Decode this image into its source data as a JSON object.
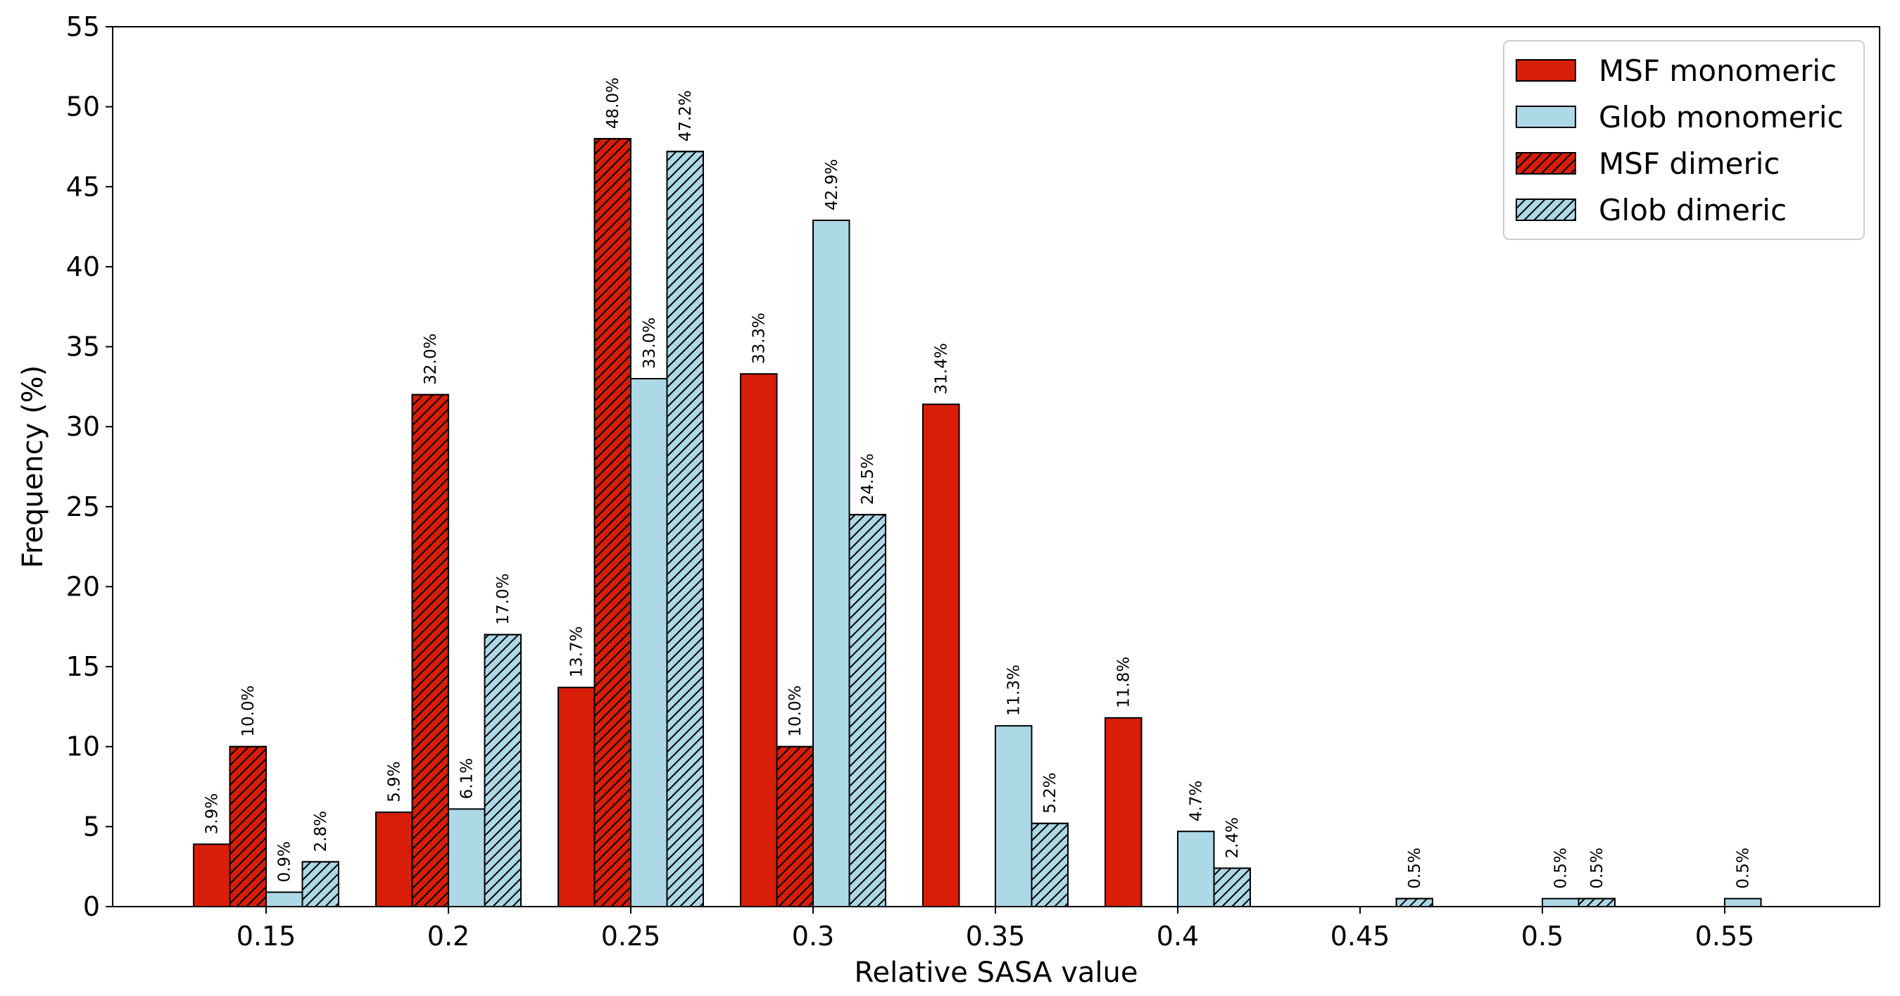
{
  "chart_data": {
    "type": "bar",
    "xlabel": "Relative SASA value",
    "ylabel": "Frequency (%)",
    "ylim": [
      0,
      55
    ],
    "yticks": [
      0,
      5,
      10,
      15,
      20,
      25,
      30,
      35,
      40,
      45,
      50,
      55
    ],
    "categories": [
      "0.15",
      "0.2",
      "0.25",
      "0.3",
      "0.35",
      "0.4",
      "0.45",
      "0.5",
      "0.55"
    ],
    "grid": false,
    "legend_position": "top-right",
    "series": [
      {
        "name": "MSF monomeric",
        "color": "#d81e08",
        "hatch": false,
        "values": [
          3.9,
          5.9,
          13.7,
          33.3,
          31.4,
          11.8,
          null,
          null,
          null
        ]
      },
      {
        "name": "MSF dimeric",
        "color": "#d81e08",
        "hatch": true,
        "values": [
          10.0,
          32.0,
          48.0,
          10.0,
          null,
          null,
          null,
          null,
          null
        ]
      },
      {
        "name": "Glob monomeric",
        "color": "#add8e6",
        "hatch": false,
        "values": [
          0.9,
          6.1,
          33.0,
          42.9,
          11.3,
          4.7,
          null,
          0.5,
          0.5
        ]
      },
      {
        "name": "Glob dimeric",
        "color": "#add8e6",
        "hatch": true,
        "values": [
          2.8,
          17.0,
          47.2,
          24.5,
          5.2,
          2.4,
          0.5,
          0.5,
          null
        ]
      }
    ],
    "legend_order": [
      "MSF monomeric",
      "Glob monomeric",
      "MSF dimeric",
      "Glob dimeric"
    ],
    "bar_label_suffix": "%"
  }
}
